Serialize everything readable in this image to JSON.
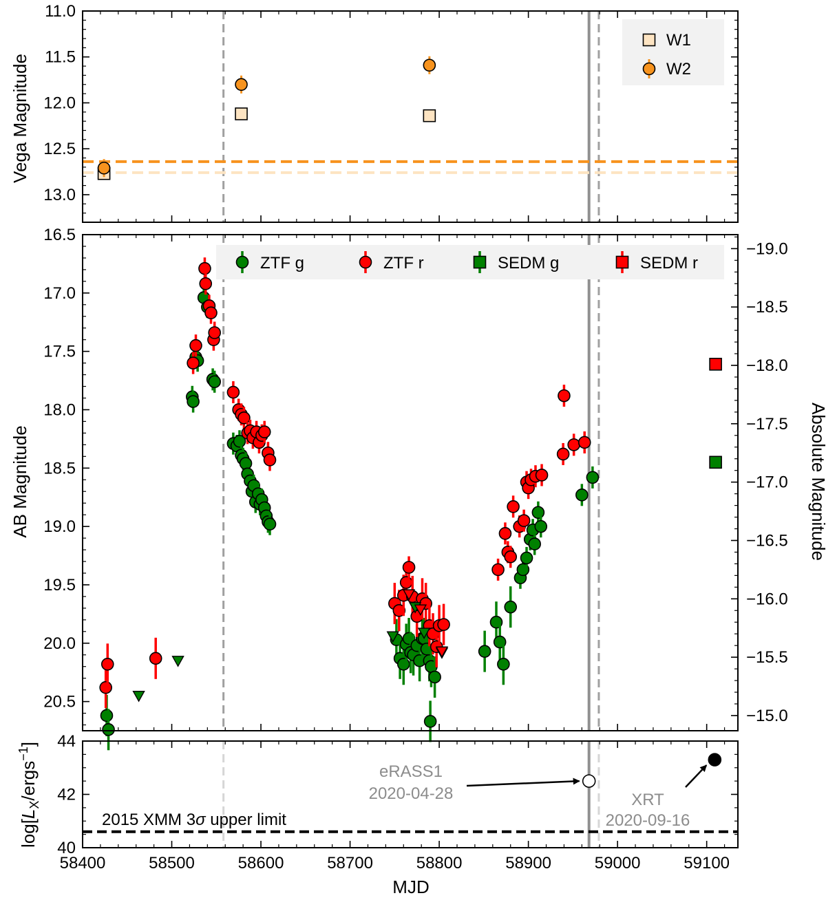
{
  "chart_data": [
    {
      "panel": "top",
      "type": "scatter",
      "ylabel": "Vega Magnitude",
      "xlim": [
        58400,
        59135
      ],
      "ylim": [
        13.3,
        11.0
      ],
      "yinvert": true,
      "yticks": [
        11.0,
        11.5,
        12.0,
        12.5,
        13.0
      ],
      "yticklabels": [
        "11.0",
        "11.5",
        "12.0",
        "12.5",
        "13.0"
      ],
      "legend_position": "upper right",
      "series": [
        {
          "name": "W1",
          "marker": "square",
          "color": "#fde4c2",
          "points": [
            [
              58424,
              12.77
            ],
            [
              58578,
              12.12
            ],
            [
              58789,
              12.14
            ]
          ]
        },
        {
          "name": "W2",
          "marker": "circle",
          "color": "#f7931e",
          "points": [
            [
              58424,
              12.71
            ],
            [
              58578,
              11.8
            ],
            [
              58789,
              11.59
            ]
          ]
        }
      ],
      "hlines": [
        {
          "y": 12.64,
          "color": "#f7931e",
          "style": "dashed"
        },
        {
          "y": 12.76,
          "color": "#fde4c2",
          "style": "dashed"
        }
      ]
    },
    {
      "panel": "middle",
      "type": "scatter",
      "ylabel": "AB Magnitude",
      "ylabel_right": "Absolute Magnitude",
      "xlim": [
        58400,
        59135
      ],
      "ylim": [
        20.75,
        16.5
      ],
      "yinvert": true,
      "yticks": [
        16.5,
        17.0,
        17.5,
        18.0,
        18.5,
        19.0,
        19.5,
        20.0,
        20.5
      ],
      "yticklabels": [
        "16.5",
        "17.0",
        "17.5",
        "18.0",
        "18.5",
        "19.0",
        "19.5",
        "20.0",
        "20.5"
      ],
      "yticks_right": [
        -19.0,
        -18.5,
        -18.0,
        -17.5,
        -17.0,
        -16.5,
        -16.0,
        -15.5,
        -15.0
      ],
      "yticklabels_right": [
        "−19.0",
        "−18.5",
        "−18.0",
        "−17.5",
        "−17.0",
        "−16.5",
        "−16.0",
        "−15.5",
        "−15.0"
      ],
      "abs_offset": 35.62,
      "legend_position": "upper center",
      "series": [
        {
          "name": "ZTF g",
          "marker": "circle",
          "color": "#008000",
          "points": [
            [
              58427,
              20.62
            ],
            [
              58429,
              20.74
            ],
            [
              58523,
              17.89
            ],
            [
              58524,
              17.93
            ],
            [
              58527,
              17.55
            ],
            [
              58529,
              17.58
            ],
            [
              58536,
              17.04
            ],
            [
              58540,
              17.12
            ],
            [
              58546,
              17.74
            ],
            [
              58548,
              17.76
            ],
            [
              58569,
              18.29
            ],
            [
              58573,
              18.31
            ],
            [
              58576,
              18.27
            ],
            [
              58578,
              18.39
            ],
            [
              58580,
              18.42
            ],
            [
              58583,
              18.46
            ],
            [
              58585,
              18.55
            ],
            [
              58588,
              18.61
            ],
            [
              58590,
              18.7
            ],
            [
              58592,
              18.65
            ],
            [
              58594,
              18.79
            ],
            [
              58597,
              18.72
            ],
            [
              58599,
              18.81
            ],
            [
              58601,
              18.77
            ],
            [
              58604,
              18.84
            ],
            [
              58606,
              18.91
            ],
            [
              58608,
              18.96
            ],
            [
              58610,
              18.98
            ],
            [
              58752,
              19.97
            ],
            [
              58756,
              20.13
            ],
            [
              58760,
              20.18
            ],
            [
              58763,
              20.01
            ],
            [
              58766,
              19.96
            ],
            [
              58768,
              20.08
            ],
            [
              58771,
              20.1
            ],
            [
              58775,
              20.02
            ],
            [
              58778,
              20.15
            ],
            [
              58781,
              19.96
            ],
            [
              58783,
              19.96
            ],
            [
              58786,
              20.05
            ],
            [
              58789,
              20.15
            ],
            [
              58791,
              20.2
            ],
            [
              58795,
              20.29
            ],
            [
              58790,
              20.67
            ],
            [
              58851,
              20.07
            ],
            [
              58864,
              19.82
            ],
            [
              58868,
              19.99
            ],
            [
              58872,
              20.18
            ],
            [
              58880,
              19.69
            ],
            [
              58891,
              19.44
            ],
            [
              58894,
              19.37
            ],
            [
              58898,
              19.27
            ],
            [
              58902,
              19.11
            ],
            [
              58905,
              19.03
            ],
            [
              58907,
              19.15
            ],
            [
              58911,
              18.88
            ],
            [
              58914,
              19.0
            ],
            [
              58960,
              18.73
            ],
            [
              58972,
              18.58
            ]
          ]
        },
        {
          "name": "ZTF r",
          "marker": "circle",
          "color": "#ff0000",
          "points": [
            [
              58426,
              20.38
            ],
            [
              58428,
              20.18
            ],
            [
              58482,
              20.13
            ],
            [
              58524,
              17.6
            ],
            [
              58527,
              17.45
            ],
            [
              58537,
              16.79
            ],
            [
              58538,
              16.92
            ],
            [
              58542,
              17.11
            ],
            [
              58544,
              17.17
            ],
            [
              58547,
              17.4
            ],
            [
              58548,
              17.34
            ],
            [
              58569,
              17.85
            ],
            [
              58575,
              18.0
            ],
            [
              58578,
              18.04
            ],
            [
              58581,
              18.07
            ],
            [
              58585,
              18.2
            ],
            [
              58588,
              18.18
            ],
            [
              58591,
              18.24
            ],
            [
              58595,
              18.19
            ],
            [
              58598,
              18.28
            ],
            [
              58601,
              18.22
            ],
            [
              58604,
              18.19
            ],
            [
              58608,
              18.37
            ],
            [
              58610,
              18.43
            ],
            [
              58750,
              19.66
            ],
            [
              58755,
              19.72
            ],
            [
              58760,
              19.59
            ],
            [
              58763,
              19.48
            ],
            [
              58766,
              19.35
            ],
            [
              58770,
              19.6
            ],
            [
              58775,
              19.77
            ],
            [
              58781,
              19.62
            ],
            [
              58785,
              19.66
            ],
            [
              58789,
              19.85
            ],
            [
              58793,
              19.92
            ],
            [
              58797,
              20.03
            ],
            [
              58800,
              19.85
            ],
            [
              58805,
              19.84
            ],
            [
              58866,
              19.37
            ],
            [
              58874,
              19.06
            ],
            [
              58877,
              19.22
            ],
            [
              58880,
              19.26
            ],
            [
              58883,
              18.83
            ],
            [
              58890,
              19.0
            ],
            [
              58895,
              18.95
            ],
            [
              58898,
              18.62
            ],
            [
              58900,
              18.67
            ],
            [
              58903,
              18.6
            ],
            [
              58908,
              18.57
            ],
            [
              58915,
              18.56
            ],
            [
              58939,
              18.38
            ],
            [
              58940,
              17.88
            ],
            [
              58951,
              18.3
            ],
            [
              58963,
              18.28
            ]
          ]
        },
        {
          "name": "ZTF g upper limit",
          "marker": "triangle-down",
          "color": "#008000",
          "legend": false,
          "points": [
            [
              58463,
              20.45
            ],
            [
              58507,
              20.15
            ],
            [
              58748,
              19.94
            ],
            [
              58773,
              19.69
            ],
            [
              58783,
              19.91
            ],
            [
              58803,
              20.08
            ]
          ]
        },
        {
          "name": "ZTF r upper limit",
          "marker": "triangle-down",
          "color": "#ff0000",
          "legend": false,
          "points": [
            [
              58766,
              19.58
            ],
            [
              58779,
              19.71
            ],
            [
              58803,
              20.07
            ]
          ]
        },
        {
          "name": "SEDM g",
          "marker": "square",
          "color": "#008000",
          "points": [
            [
              59110,
              18.45
            ]
          ]
        },
        {
          "name": "SEDM r",
          "marker": "square",
          "color": "#ff0000",
          "points": [
            [
              59110,
              17.61
            ]
          ]
        }
      ]
    },
    {
      "panel": "bottom",
      "type": "scatter",
      "xlabel": "MJD",
      "ylabel": "log[L_X/ergs⁻¹]",
      "xlim": [
        58400,
        59135
      ],
      "ylim": [
        40.0,
        44.0
      ],
      "yticks": [
        40,
        42,
        44
      ],
      "yticklabels": [
        "40",
        "42",
        "44"
      ],
      "xticks": [
        58400,
        58500,
        58600,
        58700,
        58800,
        58900,
        59000,
        59100
      ],
      "xticklabels": [
        "58400",
        "58500",
        "58600",
        "58700",
        "58800",
        "58900",
        "59000",
        "59100"
      ],
      "series": [
        {
          "name": "eRASS1",
          "marker": "circle-open",
          "color": "#000000",
          "points": [
            [
              58968,
              42.5
            ]
          ]
        },
        {
          "name": "XRT",
          "marker": "circle",
          "color": "#000000",
          "points": [
            [
              59109,
              43.3
            ]
          ]
        }
      ],
      "hline": {
        "y": 40.6,
        "label": "2015 XMM 3σ upper limit",
        "style": "dashed"
      },
      "annotations": [
        {
          "text": "eRASS1",
          "date": "2020-04-28",
          "target": [
            58968,
            42.5
          ]
        },
        {
          "text": "XRT",
          "date": "2020-09-16",
          "target": [
            59109,
            43.3
          ]
        }
      ]
    }
  ],
  "shared_vlines": [
    {
      "x": 58558,
      "style": "dashed",
      "color": "#a0a0a0"
    },
    {
      "x": 58968,
      "style": "solid",
      "color": "#909090"
    },
    {
      "x": 58979,
      "style": "dashed",
      "color": "#a0a0a0"
    }
  ],
  "legends": {
    "top": [
      {
        "label": "W1",
        "marker": "square",
        "color": "#fde4c2"
      },
      {
        "label": "W2",
        "marker": "circle",
        "color": "#f7931e"
      }
    ],
    "middle": [
      {
        "label": "ZTF g",
        "marker": "circle",
        "color": "#008000"
      },
      {
        "label": "ZTF r",
        "marker": "circle",
        "color": "#ff0000"
      },
      {
        "label": "SEDM g",
        "marker": "square",
        "color": "#008000"
      },
      {
        "label": "SEDM r",
        "marker": "square",
        "color": "#ff0000"
      }
    ]
  },
  "labels": {
    "top_ylabel": "Vega Magnitude",
    "mid_ylabel": "AB Magnitude",
    "mid_ylabel_right": "Absolute Magnitude",
    "xlabel": "MJD",
    "xmm_label": "2015 XMM 3σ upper limit",
    "erass_name": "eRASS1",
    "erass_date": "2020-04-28",
    "xrt_name": "XRT",
    "xrt_date": "2020-09-16"
  }
}
